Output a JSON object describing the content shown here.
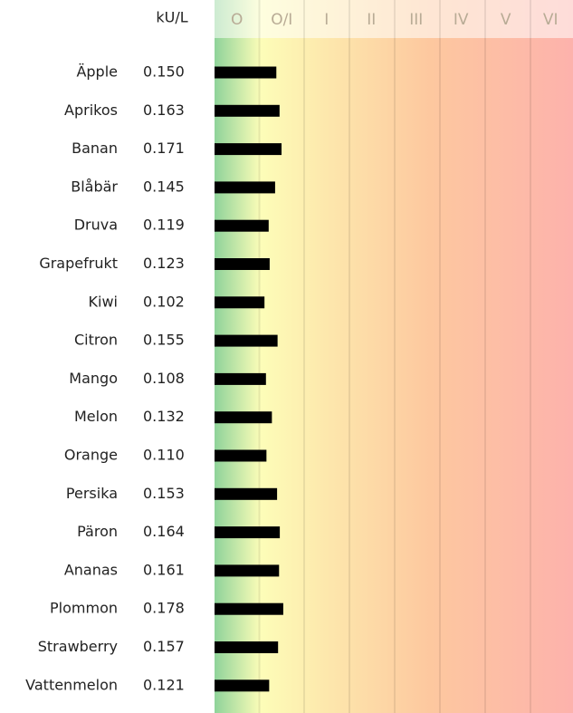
{
  "chart_data": {
    "type": "bar",
    "unit_label": "kU/L",
    "classes": [
      "O",
      "O/I",
      "I",
      "II",
      "III",
      "IV",
      "V",
      "VI"
    ],
    "categories": [
      "Äpple",
      "Aprikos",
      "Banan",
      "Blåbär",
      "Druva",
      "Grapefrukt",
      "Kiwi",
      "Citron",
      "Mango",
      "Melon",
      "Orange",
      "Persika",
      "Päron",
      "Ananas",
      "Plommon",
      "Strawberry",
      "Vattenmelon"
    ],
    "values": [
      0.15,
      0.163,
      0.171,
      0.145,
      0.119,
      0.123,
      0.102,
      0.155,
      0.108,
      0.132,
      0.11,
      0.153,
      0.164,
      0.161,
      0.178,
      0.157,
      0.121
    ],
    "value_labels": [
      "0.150",
      "0.163",
      "0.171",
      "0.145",
      "0.119",
      "0.123",
      "0.102",
      "0.155",
      "0.108",
      "0.132",
      "0.110",
      "0.153",
      "0.164",
      "0.161",
      "0.178",
      "0.157",
      "0.121"
    ],
    "color": "#000000",
    "xlim": [
      -0.1,
      1.35
    ]
  }
}
